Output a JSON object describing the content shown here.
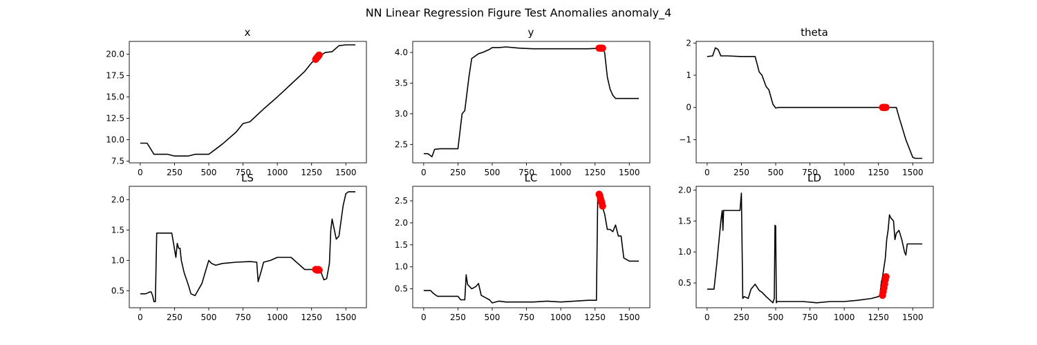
{
  "figure": {
    "suptitle": "NN Linear Regression Figure Test Anomalies anomaly_4"
  },
  "chart_data": [
    {
      "type": "line",
      "title": "x",
      "xlim": [
        -80,
        1650
      ],
      "ylim": [
        7.3,
        21.5
      ],
      "xticks": [
        0,
        250,
        500,
        750,
        1000,
        1250,
        1500
      ],
      "yticks": [
        7.5,
        10.0,
        12.5,
        15.0,
        17.5,
        20.0
      ],
      "ytick_labels": [
        "7.5",
        "10.0",
        "12.5",
        "15.0",
        "17.5",
        "20.0"
      ],
      "series": [
        {
          "color": "#000000",
          "x": [
            0,
            50,
            100,
            200,
            250,
            350,
            400,
            500,
            550,
            600,
            700,
            750,
            800,
            900,
            1000,
            1100,
            1200,
            1250,
            1300,
            1350,
            1400,
            1450,
            1500,
            1570
          ],
          "y": [
            9.6,
            9.6,
            8.3,
            8.3,
            8.1,
            8.1,
            8.3,
            8.3,
            8.9,
            9.5,
            10.9,
            11.9,
            12.1,
            13.6,
            15.0,
            16.5,
            18.0,
            19.0,
            19.7,
            20.2,
            20.3,
            21.0,
            21.1,
            21.1
          ]
        },
        {
          "color": "#ff0000",
          "marker": "o",
          "x": [
            1280,
            1285,
            1290,
            1295,
            1300,
            1305
          ],
          "y": [
            19.4,
            19.5,
            19.6,
            19.7,
            19.8,
            19.9
          ]
        }
      ]
    },
    {
      "type": "line",
      "title": "y",
      "xlim": [
        -80,
        1650
      ],
      "ylim": [
        2.2,
        4.18
      ],
      "xticks": [
        0,
        250,
        500,
        750,
        1000,
        1250,
        1500
      ],
      "yticks": [
        2.5,
        3.0,
        3.5,
        4.0
      ],
      "ytick_labels": [
        "2.5",
        "3.0",
        "3.5",
        "4.0"
      ],
      "series": [
        {
          "color": "#000000",
          "x": [
            0,
            30,
            60,
            80,
            120,
            200,
            250,
            280,
            300,
            330,
            350,
            400,
            430,
            480,
            500,
            550,
            600,
            700,
            800,
            1000,
            1200,
            1300,
            1320,
            1340,
            1360,
            1380,
            1400,
            1450,
            1570
          ],
          "y": [
            2.35,
            2.35,
            2.3,
            2.42,
            2.43,
            2.43,
            2.43,
            3.0,
            3.05,
            3.6,
            3.9,
            3.98,
            4.0,
            4.05,
            4.08,
            4.08,
            4.09,
            4.07,
            4.06,
            4.06,
            4.06,
            4.07,
            4.0,
            3.6,
            3.4,
            3.3,
            3.25,
            3.25,
            3.25
          ]
        },
        {
          "color": "#ff0000",
          "marker": "o",
          "x": [
            1280,
            1285,
            1290,
            1295,
            1300,
            1305
          ],
          "y": [
            4.07,
            4.07,
            4.07,
            4.07,
            4.07,
            4.07
          ]
        }
      ]
    },
    {
      "type": "line",
      "title": "theta",
      "xlim": [
        -80,
        1650
      ],
      "ylim": [
        -1.72,
        2.05
      ],
      "xticks": [
        0,
        250,
        500,
        750,
        1000,
        1250,
        1500
      ],
      "yticks": [
        -1,
        0,
        1,
        2
      ],
      "ytick_labels": [
        "−1",
        "0",
        "1",
        "2"
      ],
      "series": [
        {
          "color": "#000000",
          "x": [
            0,
            40,
            60,
            80,
            100,
            150,
            250,
            300,
            350,
            380,
            400,
            430,
            450,
            480,
            500,
            520,
            600,
            800,
            1000,
            1200,
            1300,
            1350,
            1380,
            1400,
            1450,
            1500,
            1520,
            1570
          ],
          "y": [
            1.58,
            1.6,
            1.85,
            1.8,
            1.6,
            1.6,
            1.58,
            1.58,
            1.58,
            1.1,
            1.0,
            0.65,
            0.55,
            0.1,
            -0.02,
            0.0,
            0.0,
            0.0,
            0.0,
            0.0,
            0.0,
            0.0,
            0.0,
            -0.3,
            -1.0,
            -1.55,
            -1.58,
            -1.58
          ]
        },
        {
          "color": "#ff0000",
          "marker": "o",
          "x": [
            1280,
            1285,
            1290,
            1295,
            1300,
            1305
          ],
          "y": [
            0.0,
            0.0,
            0.0,
            0.0,
            0.0,
            0.0
          ]
        }
      ]
    },
    {
      "type": "line",
      "title": "LS",
      "xlim": [
        -80,
        1650
      ],
      "ylim": [
        0.22,
        2.22
      ],
      "xticks": [
        0,
        250,
        500,
        750,
        1000,
        1250,
        1500
      ],
      "yticks": [
        0.5,
        1.0,
        1.5,
        2.0
      ],
      "ytick_labels": [
        "0.5",
        "1.0",
        "1.5",
        "2.0"
      ],
      "series": [
        {
          "color": "#000000",
          "x": [
            0,
            40,
            70,
            80,
            90,
            100,
            110,
            120,
            150,
            200,
            230,
            260,
            270,
            280,
            290,
            300,
            320,
            350,
            370,
            400,
            420,
            450,
            480,
            500,
            520,
            550,
            600,
            700,
            800,
            850,
            860,
            880,
            900,
            950,
            1000,
            1100,
            1200,
            1250,
            1300,
            1320,
            1340,
            1360,
            1380,
            1390,
            1400,
            1430,
            1450,
            1480,
            1500,
            1520,
            1570
          ],
          "y": [
            0.45,
            0.45,
            0.48,
            0.48,
            0.42,
            0.32,
            0.32,
            1.45,
            1.45,
            1.45,
            1.45,
            1.05,
            1.28,
            1.2,
            1.2,
            1.0,
            0.8,
            0.6,
            0.45,
            0.42,
            0.5,
            0.62,
            0.85,
            1.0,
            0.95,
            0.92,
            0.95,
            0.97,
            0.98,
            0.97,
            0.65,
            0.8,
            0.97,
            1.0,
            1.05,
            1.05,
            0.85,
            0.85,
            0.85,
            0.8,
            0.68,
            0.7,
            0.95,
            1.5,
            1.68,
            1.35,
            1.4,
            1.9,
            2.1,
            2.13,
            2.13
          ]
        },
        {
          "color": "#ff0000",
          "marker": "o",
          "x": [
            1280,
            1285,
            1290,
            1295,
            1300,
            1305
          ],
          "y": [
            0.85,
            0.85,
            0.84,
            0.84,
            0.85,
            0.84
          ]
        }
      ]
    },
    {
      "type": "line",
      "title": "LC",
      "xlim": [
        -80,
        1650
      ],
      "ylim": [
        0.07,
        2.83
      ],
      "xticks": [
        0,
        250,
        500,
        750,
        1000,
        1250,
        1500
      ],
      "yticks": [
        0.5,
        1.0,
        1.5,
        2.0,
        2.5
      ],
      "ytick_labels": [
        "0.5",
        "1.0",
        "1.5",
        "2.0",
        "2.5"
      ],
      "series": [
        {
          "color": "#000000",
          "x": [
            0,
            50,
            70,
            100,
            200,
            250,
            270,
            300,
            310,
            320,
            350,
            380,
            400,
            420,
            450,
            480,
            500,
            550,
            600,
            700,
            800,
            900,
            1000,
            1100,
            1200,
            1250,
            1260,
            1270,
            1280,
            1300,
            1320,
            1340,
            1360,
            1380,
            1400,
            1420,
            1440,
            1460,
            1500,
            1570
          ],
          "y": [
            0.46,
            0.46,
            0.4,
            0.33,
            0.33,
            0.33,
            0.25,
            0.25,
            0.82,
            0.6,
            0.5,
            0.55,
            0.62,
            0.35,
            0.3,
            0.25,
            0.18,
            0.22,
            0.2,
            0.2,
            0.2,
            0.22,
            0.2,
            0.22,
            0.24,
            0.24,
            0.24,
            2.7,
            2.6,
            2.4,
            2.2,
            1.85,
            1.85,
            1.8,
            1.95,
            1.7,
            1.7,
            1.2,
            1.13,
            1.13
          ]
        },
        {
          "color": "#ff0000",
          "marker": "o",
          "x": [
            1280,
            1285,
            1290,
            1295,
            1300,
            1305
          ],
          "y": [
            2.65,
            2.62,
            2.55,
            2.5,
            2.45,
            2.38
          ]
        }
      ]
    },
    {
      "type": "line",
      "title": "LD",
      "xlim": [
        -80,
        1650
      ],
      "ylim": [
        0.1,
        2.06
      ],
      "xticks": [
        0,
        250,
        500,
        750,
        1000,
        1250,
        1500
      ],
      "yticks": [
        0.5,
        1.0,
        1.5,
        2.0
      ],
      "ytick_labels": [
        "0.5",
        "1.0",
        "1.5",
        "2.0"
      ],
      "series": [
        {
          "color": "#000000",
          "x": [
            0,
            40,
            50,
            70,
            100,
            110,
            115,
            120,
            130,
            200,
            240,
            250,
            260,
            270,
            300,
            320,
            350,
            380,
            400,
            430,
            460,
            480,
            490,
            495,
            500,
            505,
            510,
            600,
            700,
            800,
            900,
            1000,
            1100,
            1200,
            1250,
            1260,
            1270,
            1280,
            1300,
            1310,
            1320,
            1330,
            1340,
            1360,
            1370,
            1380,
            1400,
            1420,
            1440,
            1450,
            1460,
            1500,
            1570
          ],
          "y": [
            0.4,
            0.4,
            0.4,
            0.8,
            1.5,
            1.67,
            1.35,
            1.67,
            1.67,
            1.67,
            1.67,
            1.95,
            0.25,
            0.28,
            0.25,
            0.4,
            0.48,
            0.38,
            0.35,
            0.28,
            0.22,
            0.18,
            0.25,
            1.43,
            1.42,
            0.18,
            0.2,
            0.2,
            0.2,
            0.18,
            0.2,
            0.2,
            0.22,
            0.25,
            0.28,
            0.3,
            0.5,
            0.6,
            0.9,
            1.2,
            1.35,
            1.6,
            1.55,
            1.5,
            1.2,
            1.3,
            1.35,
            1.2,
            1.0,
            0.95,
            1.13,
            1.13,
            1.13
          ]
        },
        {
          "color": "#ff0000",
          "marker": "o",
          "x": [
            1280,
            1285,
            1290,
            1295,
            1300,
            1305
          ],
          "y": [
            0.3,
            0.36,
            0.42,
            0.48,
            0.55,
            0.6
          ]
        }
      ]
    }
  ]
}
